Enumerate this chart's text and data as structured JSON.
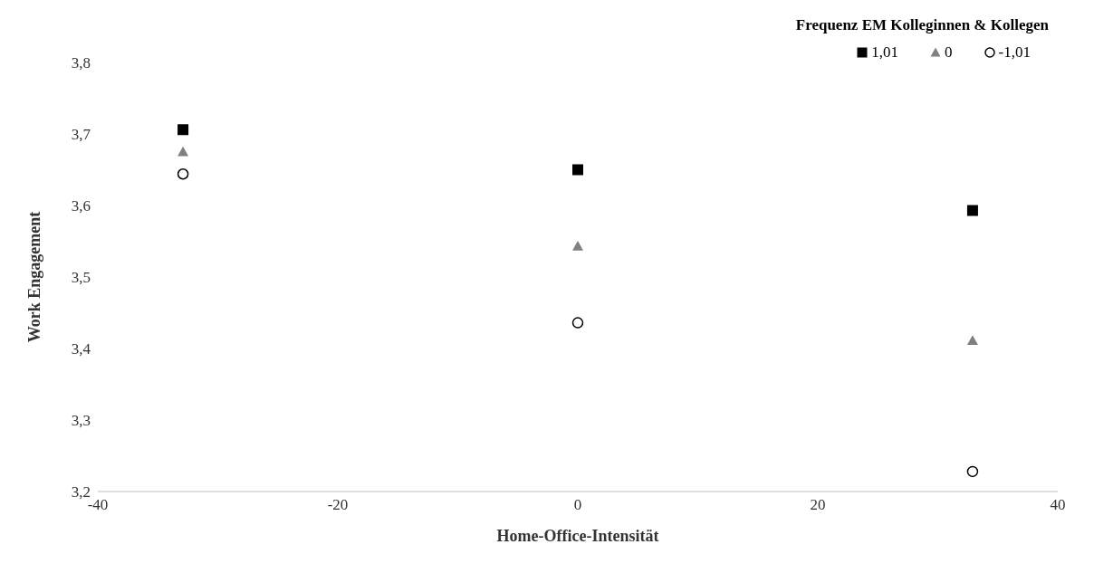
{
  "chart_data": {
    "type": "scatter",
    "xlabel": "Home-Office-Intensität",
    "ylabel": "Work Engagement",
    "legend_title": "Frequenz EM Kolleginnen & Kollegen",
    "legend": "top right",
    "grid": false,
    "x": [
      -32.9,
      0,
      32.9
    ],
    "xlim": [
      -40,
      40
    ],
    "xticks": [
      -40,
      -20,
      0,
      20,
      40
    ],
    "ylim": [
      3.2,
      3.8
    ],
    "yticks": [
      {
        "value": 3.2,
        "label": "3,2"
      },
      {
        "value": 3.3,
        "label": "3,3"
      },
      {
        "value": 3.4,
        "label": "3,4"
      },
      {
        "value": 3.5,
        "label": "3,5"
      },
      {
        "value": 3.6,
        "label": "3,6"
      },
      {
        "value": 3.7,
        "label": "3,7"
      },
      {
        "value": 3.8,
        "label": "3,8"
      }
    ],
    "series": [
      {
        "name": "1,01",
        "color": "#000000",
        "marker": "square",
        "values": [
          3.706,
          3.65,
          3.593
        ]
      },
      {
        "name": "0",
        "color": "#808080",
        "marker": "triangle",
        "values": [
          3.675,
          3.543,
          3.411
        ]
      },
      {
        "name": "-1,01",
        "color": "#000000",
        "marker": "circle",
        "values": [
          3.644,
          3.436,
          3.228
        ]
      }
    ]
  }
}
